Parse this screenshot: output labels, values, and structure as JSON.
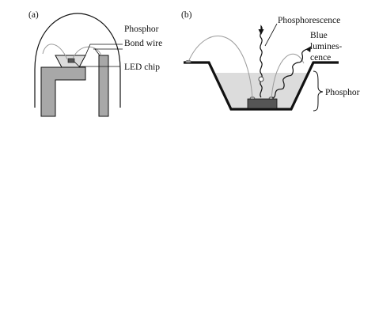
{
  "figure": {
    "panel_a": {
      "letter": "(a)",
      "labels": {
        "phosphor": "Phosphor",
        "bond_wire": "Bond wire",
        "led_chip": "LED chip"
      }
    },
    "panel_b": {
      "letter": "(b)",
      "labels": {
        "phosphorescence": "Phosphorescence",
        "blue_line1": "Blue",
        "blue_line2": "lumines-",
        "blue_line3": "cence",
        "phosphor": "Phosphor"
      }
    },
    "colors": {
      "lead_gray": "#a8a8a8",
      "phosphor_fill": "#dcdcdc",
      "chip_fill": "#555555",
      "outline": "#111111",
      "wire": "#9a9a9a"
    }
  }
}
